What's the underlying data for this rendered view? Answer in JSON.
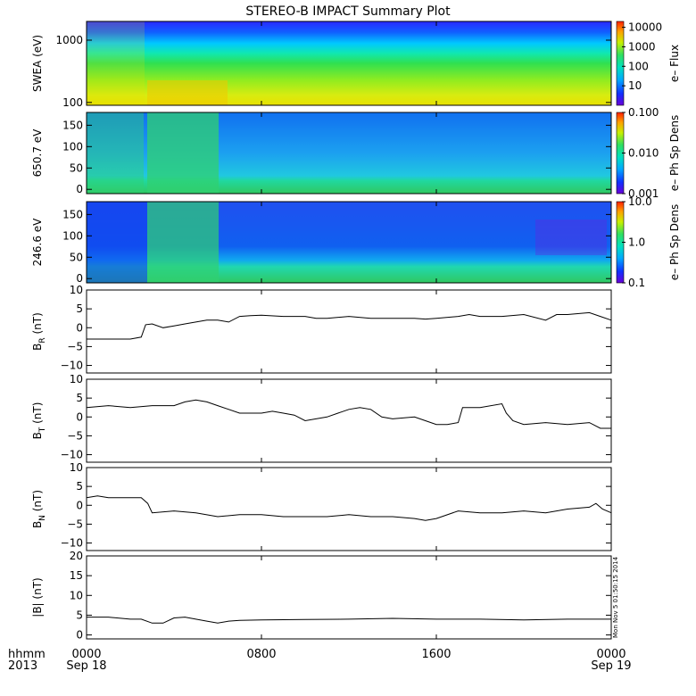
{
  "title": "STEREO-B IMPACT Summary Plot",
  "timestamp": "Mon Nov 5 01:50:15 2014",
  "x_axis": {
    "row_label_1": "hhmm",
    "row_label_2": "2013",
    "ticks": [
      {
        "time": "0000",
        "date": "Sep 18",
        "hour": 0
      },
      {
        "time": "0800",
        "date": "",
        "hour": 8
      },
      {
        "time": "1600",
        "date": "",
        "hour": 16
      },
      {
        "time": "0000",
        "date": "Sep 19",
        "hour": 24
      }
    ],
    "range_hours": [
      0,
      24
    ]
  },
  "chart_data": [
    {
      "type": "heatmap",
      "ylabel": "SWEA (eV)",
      "yscale": "log",
      "ylim": [
        90,
        2000
      ],
      "yticks": [
        {
          "v": 100,
          "label": "100"
        },
        {
          "v": 1000,
          "label": "1000"
        }
      ],
      "colorbar": {
        "label": "e– Flux",
        "scale": "log",
        "range": [
          1,
          20000
        ],
        "ticks": [
          {
            "v": 10,
            "label": "10"
          },
          {
            "v": 100,
            "label": "100"
          },
          {
            "v": 1000,
            "label": "1000"
          },
          {
            "v": 10000,
            "label": "10000"
          }
        ]
      }
    },
    {
      "type": "heatmap",
      "ylabel": "650.7 eV",
      "yscale": "linear",
      "ylim": [
        -10,
        180
      ],
      "yticks": [
        {
          "v": 0,
          "label": "0"
        },
        {
          "v": 50,
          "label": "50"
        },
        {
          "v": 100,
          "label": "100"
        },
        {
          "v": 150,
          "label": "150"
        }
      ],
      "colorbar": {
        "label": "e– Ph Sp Dens",
        "scale": "log",
        "range": [
          0.001,
          0.1
        ],
        "ticks": [
          {
            "v": 0.001,
            "label": "0.001"
          },
          {
            "v": 0.01,
            "label": "0.010"
          },
          {
            "v": 0.1,
            "label": "0.100"
          }
        ]
      }
    },
    {
      "type": "heatmap",
      "ylabel": "246.6 eV",
      "yscale": "linear",
      "ylim": [
        -10,
        180
      ],
      "yticks": [
        {
          "v": 0,
          "label": "0"
        },
        {
          "v": 50,
          "label": "50"
        },
        {
          "v": 100,
          "label": "100"
        },
        {
          "v": 150,
          "label": "150"
        }
      ],
      "colorbar": {
        "label": "e– Ph Sp Dens",
        "scale": "log",
        "range": [
          0.1,
          10
        ],
        "ticks": [
          {
            "v": 0.1,
            "label": "0.1"
          },
          {
            "v": 1,
            "label": "1.0"
          },
          {
            "v": 10,
            "label": "10.0"
          }
        ]
      }
    },
    {
      "type": "line",
      "ylabel": "B",
      "ylabel_sub": "R",
      "ylabel_unit": " (nT)",
      "ylim": [
        -12,
        10
      ],
      "yticks": [
        {
          "v": -10,
          "label": "−10"
        },
        {
          "v": -5,
          "label": "−5"
        },
        {
          "v": 0,
          "label": "0"
        },
        {
          "v": 5,
          "label": "5"
        },
        {
          "v": 10,
          "label": "10"
        }
      ],
      "x": [
        0,
        1,
        2,
        2.5,
        2.7,
        3,
        3.5,
        4,
        4.5,
        5,
        5.5,
        6,
        6.5,
        7,
        7.5,
        8,
        9,
        10,
        10.5,
        11,
        12,
        13,
        14,
        15,
        15.5,
        16,
        17,
        17.5,
        18,
        19,
        20,
        21,
        21.5,
        22,
        23,
        23.5,
        24
      ],
      "y": [
        -3,
        -3,
        -3,
        -2.5,
        0.8,
        1,
        0,
        0.5,
        1,
        1.5,
        2,
        2,
        1.5,
        3,
        3.2,
        3.3,
        3,
        3,
        2.5,
        2.5,
        3,
        2.5,
        2.5,
        2.5,
        2.3,
        2.5,
        3,
        3.5,
        3,
        3,
        3.5,
        2,
        3.5,
        3.5,
        4,
        3,
        2
      ]
    },
    {
      "type": "line",
      "ylabel": "B",
      "ylabel_sub": "T",
      "ylabel_unit": " (nT)",
      "ylim": [
        -12,
        10
      ],
      "yticks": [
        {
          "v": -10,
          "label": "−10"
        },
        {
          "v": -5,
          "label": "−5"
        },
        {
          "v": 0,
          "label": "0"
        },
        {
          "v": 5,
          "label": "5"
        },
        {
          "v": 10,
          "label": "10"
        }
      ],
      "x": [
        0,
        1,
        2,
        3,
        4,
        4.5,
        5,
        5.5,
        6,
        7,
        8,
        8.5,
        9,
        9.5,
        10,
        11,
        11.5,
        12,
        12.5,
        13,
        13.5,
        14,
        15,
        15.5,
        16,
        16.5,
        17,
        17.2,
        18,
        19,
        19.2,
        19.5,
        20,
        21,
        22,
        23,
        23.5,
        24
      ],
      "y": [
        2.5,
        3,
        2.5,
        3,
        3,
        4,
        4.5,
        4,
        3,
        1,
        1,
        1.5,
        1,
        0.5,
        -1,
        0,
        1,
        2,
        2.5,
        2,
        0,
        -0.5,
        0,
        -1,
        -2,
        -2,
        -1.5,
        2.5,
        2.5,
        3.5,
        1,
        -1,
        -2,
        -1.5,
        -2,
        -1.5,
        -3,
        -3
      ]
    },
    {
      "type": "line",
      "ylabel": "B",
      "ylabel_sub": "N",
      "ylabel_unit": " (nT)",
      "ylim": [
        -12,
        10
      ],
      "yticks": [
        {
          "v": -10,
          "label": "−10"
        },
        {
          "v": -5,
          "label": "−5"
        },
        {
          "v": 0,
          "label": "0"
        },
        {
          "v": 5,
          "label": "5"
        },
        {
          "v": 10,
          "label": "10"
        }
      ],
      "x": [
        0,
        0.5,
        1,
        1.5,
        2,
        2.5,
        2.8,
        3,
        4,
        5,
        6,
        7,
        8,
        9,
        10,
        11,
        12,
        13,
        14,
        15,
        15.5,
        16,
        17,
        18,
        19,
        20,
        21,
        22,
        23,
        23.3,
        23.6,
        24
      ],
      "y": [
        2,
        2.5,
        2,
        2,
        2,
        2,
        0.5,
        -2,
        -1.5,
        -2,
        -3,
        -2.5,
        -2.5,
        -3,
        -3,
        -3,
        -2.5,
        -3,
        -3,
        -3.5,
        -4,
        -3.5,
        -1.5,
        -2,
        -2,
        -1.5,
        -2,
        -1,
        -0.5,
        0.5,
        -1,
        -2
      ]
    },
    {
      "type": "line",
      "ylabel": "|B|",
      "ylabel_sub": "",
      "ylabel_unit": " (nT)",
      "ylim": [
        -1,
        20
      ],
      "yticks": [
        {
          "v": 0,
          "label": "0"
        },
        {
          "v": 5,
          "label": "5"
        },
        {
          "v": 10,
          "label": "10"
        },
        {
          "v": 15,
          "label": "15"
        },
        {
          "v": 20,
          "label": "20"
        }
      ],
      "x": [
        0,
        1,
        2,
        2.5,
        3,
        3.5,
        4,
        4.5,
        5,
        5.5,
        6,
        6.5,
        7,
        8,
        10,
        12,
        14,
        16,
        18,
        20,
        22,
        24
      ],
      "y": [
        4.5,
        4.5,
        4,
        4,
        3,
        3,
        4.3,
        4.5,
        4,
        3.5,
        3,
        3.5,
        3.7,
        3.8,
        3.9,
        4,
        4.2,
        4,
        4,
        3.8,
        4,
        4
      ]
    }
  ]
}
